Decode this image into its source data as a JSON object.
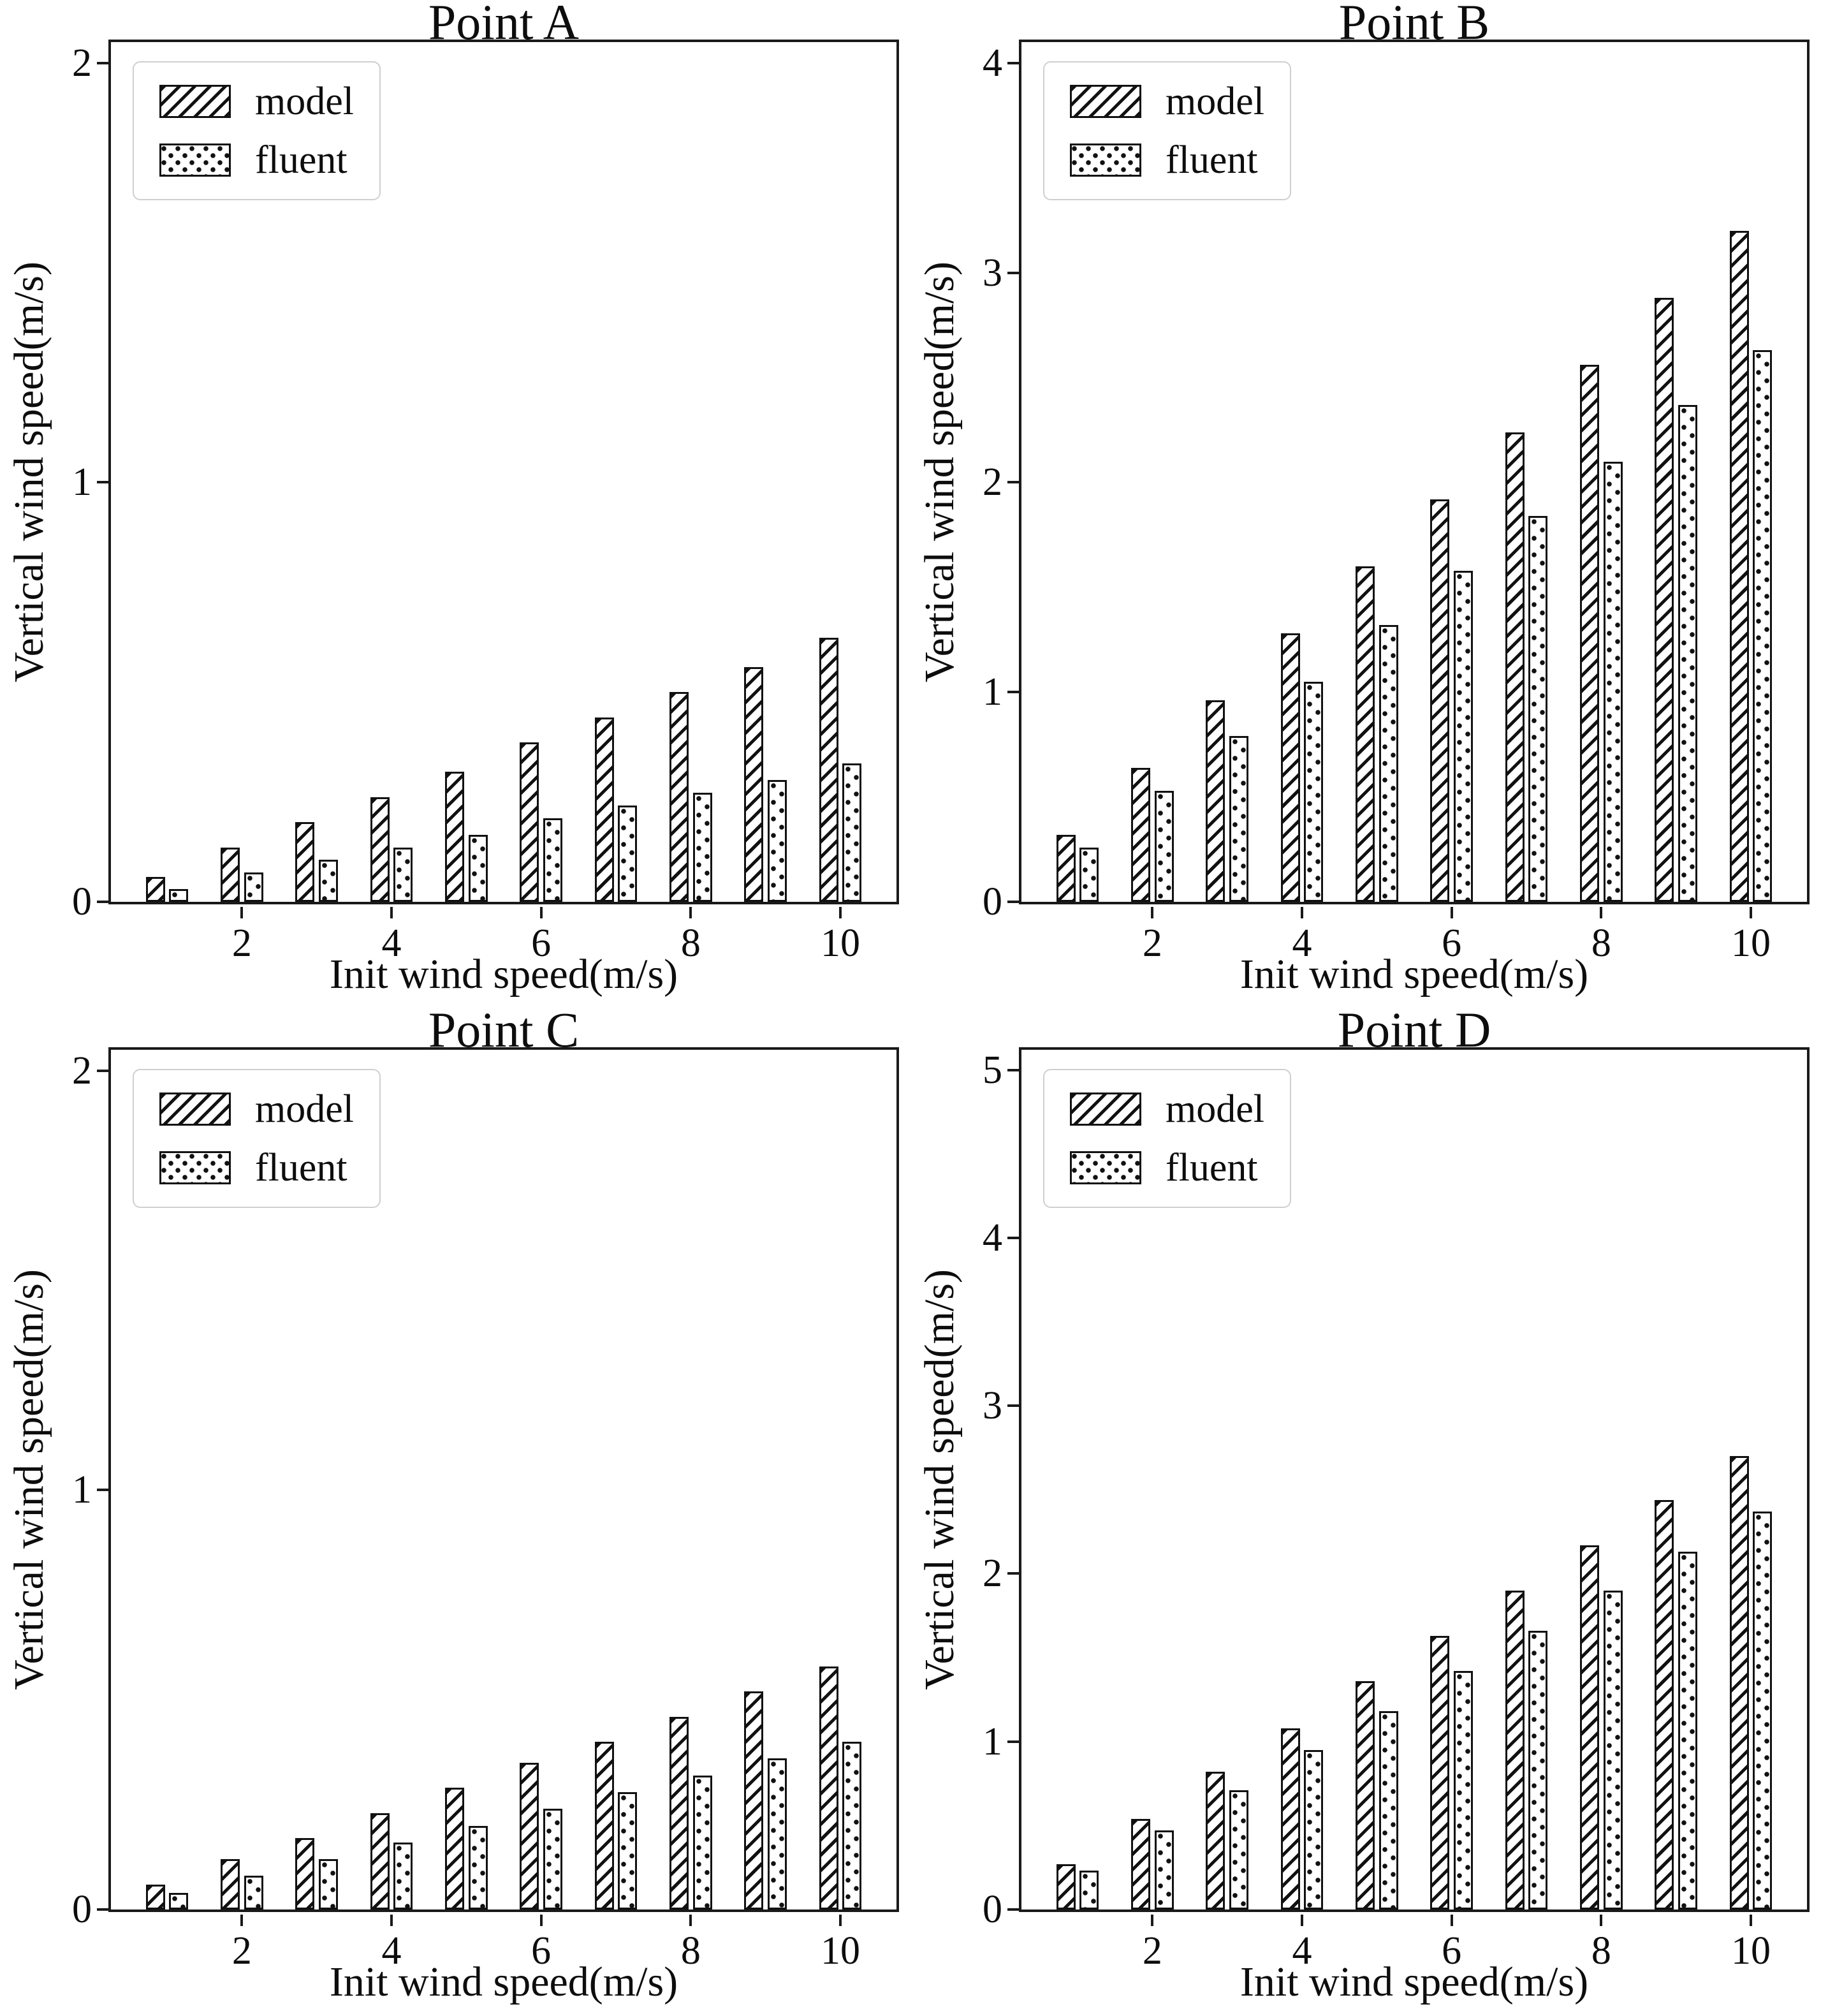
{
  "figure": {
    "background": "#ffffff",
    "ink_color": "#111111",
    "frame_color": "#1a1a1a",
    "legend_border_color": "#cfcfcf",
    "layout": "2x2 grid of bar charts"
  },
  "chart_data": [
    {
      "id": "point-a",
      "type": "bar",
      "title": "Point A",
      "xlabel": "Init wind speed(m/s)",
      "ylabel": "Vertical wind speed(m/s)",
      "x": [
        1,
        2,
        3,
        4,
        5,
        6,
        7,
        8,
        9,
        10
      ],
      "xticks": [
        2,
        4,
        6,
        8,
        10
      ],
      "yticks": [
        0,
        1,
        2
      ],
      "xlim": [
        0.25,
        10.75
      ],
      "ylim": [
        0,
        2.05
      ],
      "grid": false,
      "legend_position": "upper left",
      "series": [
        {
          "name": "model",
          "hatch": "diagonal",
          "values": [
            0.06,
            0.13,
            0.19,
            0.25,
            0.31,
            0.38,
            0.44,
            0.5,
            0.56,
            0.63
          ]
        },
        {
          "name": "fluent",
          "hatch": "dots",
          "values": [
            0.03,
            0.07,
            0.1,
            0.13,
            0.16,
            0.2,
            0.23,
            0.26,
            0.29,
            0.33
          ]
        }
      ]
    },
    {
      "id": "point-b",
      "type": "bar",
      "title": "Point B",
      "xlabel": "Init wind speed(m/s)",
      "ylabel": "Vertical wind speed(m/s)",
      "x": [
        1,
        2,
        3,
        4,
        5,
        6,
        7,
        8,
        9,
        10
      ],
      "xticks": [
        2,
        4,
        6,
        8,
        10
      ],
      "yticks": [
        0,
        1,
        2,
        3,
        4
      ],
      "xlim": [
        0.25,
        10.75
      ],
      "ylim": [
        0,
        4.1
      ],
      "grid": false,
      "legend_position": "upper left",
      "series": [
        {
          "name": "model",
          "hatch": "diagonal",
          "values": [
            0.32,
            0.64,
            0.96,
            1.28,
            1.6,
            1.92,
            2.24,
            2.56,
            2.88,
            3.2
          ]
        },
        {
          "name": "fluent",
          "hatch": "dots",
          "values": [
            0.26,
            0.53,
            0.79,
            1.05,
            1.32,
            1.58,
            1.84,
            2.1,
            2.37,
            2.63
          ]
        }
      ]
    },
    {
      "id": "point-c",
      "type": "bar",
      "title": "Point C",
      "xlabel": "Init wind speed(m/s)",
      "ylabel": "Vertical wind speed(m/s)",
      "x": [
        1,
        2,
        3,
        4,
        5,
        6,
        7,
        8,
        9,
        10
      ],
      "xticks": [
        2,
        4,
        6,
        8,
        10
      ],
      "yticks": [
        0,
        1,
        2
      ],
      "xlim": [
        0.25,
        10.75
      ],
      "ylim": [
        0,
        2.05
      ],
      "grid": false,
      "legend_position": "upper left",
      "series": [
        {
          "name": "model",
          "hatch": "diagonal",
          "values": [
            0.06,
            0.12,
            0.17,
            0.23,
            0.29,
            0.35,
            0.4,
            0.46,
            0.52,
            0.58
          ]
        },
        {
          "name": "fluent",
          "hatch": "dots",
          "values": [
            0.04,
            0.08,
            0.12,
            0.16,
            0.2,
            0.24,
            0.28,
            0.32,
            0.36,
            0.4
          ]
        }
      ]
    },
    {
      "id": "point-d",
      "type": "bar",
      "title": "Point D",
      "xlabel": "Init wind speed(m/s)",
      "ylabel": "Vertical wind speed(m/s)",
      "x": [
        1,
        2,
        3,
        4,
        5,
        6,
        7,
        8,
        9,
        10
      ],
      "xticks": [
        2,
        4,
        6,
        8,
        10
      ],
      "yticks": [
        0,
        1,
        2,
        3,
        4,
        5
      ],
      "xlim": [
        0.25,
        10.75
      ],
      "ylim": [
        0,
        5.12
      ],
      "grid": false,
      "legend_position": "upper left",
      "series": [
        {
          "name": "model",
          "hatch": "diagonal",
          "values": [
            0.27,
            0.54,
            0.82,
            1.08,
            1.36,
            1.63,
            1.9,
            2.17,
            2.44,
            2.7
          ]
        },
        {
          "name": "fluent",
          "hatch": "dots",
          "values": [
            0.23,
            0.47,
            0.71,
            0.95,
            1.18,
            1.42,
            1.66,
            1.9,
            2.13,
            2.37
          ]
        }
      ]
    }
  ]
}
